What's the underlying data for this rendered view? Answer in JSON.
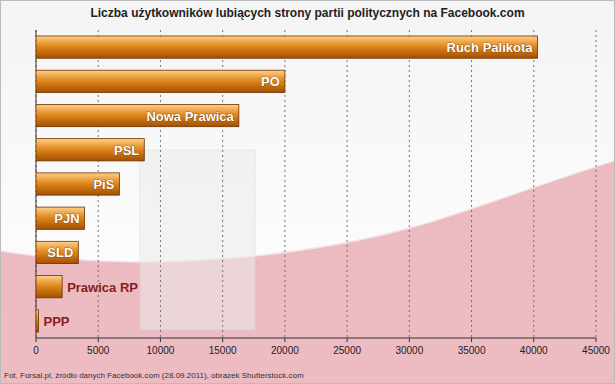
{
  "chart_data": {
    "type": "bar",
    "orientation": "horizontal",
    "title": "Liczba użytkowników lubiących strony partii politycznych na Facebook.com",
    "source": "Fot. Forsal.pl, źródło danych Facebook.com (28.09.2011), obrazek Shutterstock.com",
    "categories": [
      "Ruch Palikota",
      "PO",
      "Nowa Prawica",
      "PSL",
      "PiS",
      "PJN",
      "SLD",
      "Prawica RP",
      "PPP"
    ],
    "values": [
      40300,
      20000,
      16300,
      8700,
      6700,
      3900,
      3400,
      2100,
      200
    ],
    "color": "#e08a1e",
    "xlim": [
      0,
      45000
    ],
    "xticks": [
      0,
      5000,
      10000,
      15000,
      20000,
      25000,
      30000,
      35000,
      40000,
      45000
    ],
    "grid": true
  }
}
